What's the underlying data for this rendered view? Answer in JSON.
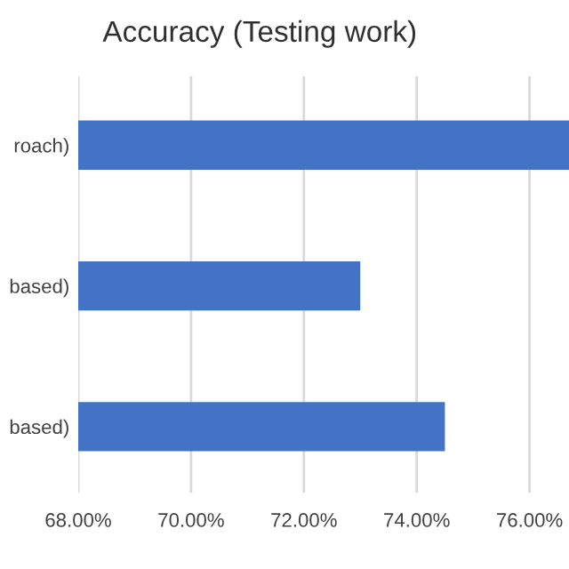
{
  "chart_data": {
    "type": "bar",
    "orientation": "horizontal",
    "title": "Accuracy (Testing work)",
    "categories": [
      "roach)",
      "based)",
      "based)"
    ],
    "values": [
      76.7,
      73.0,
      74.5
    ],
    "color": "#4472c4",
    "xlim": [
      68,
      76.7
    ],
    "xticks": [
      {
        "value": 68,
        "label": "68.00%"
      },
      {
        "value": 70,
        "label": "70.00%"
      },
      {
        "value": 72,
        "label": "72.00%"
      },
      {
        "value": 74,
        "label": "74.00%"
      },
      {
        "value": 76,
        "label": "76.00%"
      }
    ],
    "grid": "x"
  }
}
